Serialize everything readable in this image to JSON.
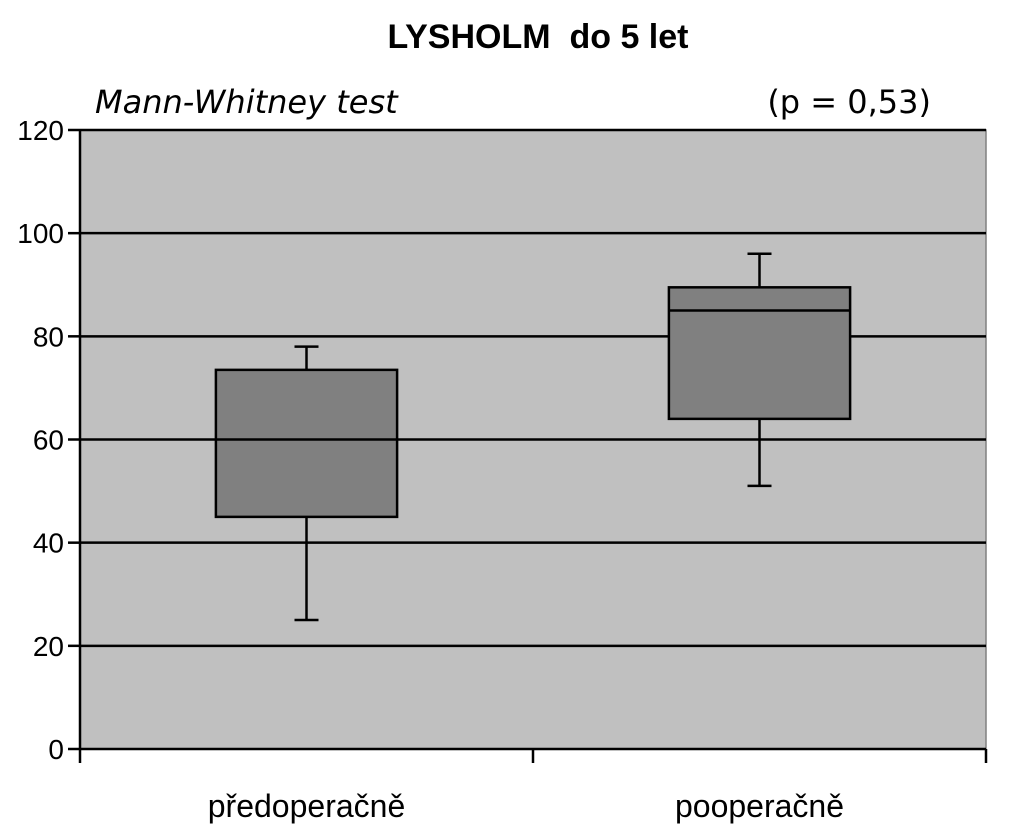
{
  "chart_data": {
    "type": "box",
    "title": "LYSHOLM  do 5 let",
    "subtitle": "Mann-Whitney test",
    "annotation": "(p = 0,53)",
    "ylim": [
      0,
      120
    ],
    "yticks": [
      "0",
      "20",
      "40",
      "60",
      "80",
      "100",
      "120"
    ],
    "ytick_values": [
      0,
      20,
      40,
      60,
      80,
      100,
      120
    ],
    "grid": true,
    "categories": [
      "předoperačně",
      "pooperačně"
    ],
    "boxes": [
      {
        "category": "předoperačně",
        "min": 25,
        "q1": 45,
        "median": 60,
        "q3": 73.5,
        "max": 78
      },
      {
        "category": "pooperačně",
        "min": 51,
        "q1": 64,
        "median": 85,
        "q3": 89.5,
        "max": 96
      }
    ],
    "colors": {
      "plot_background": "#c0c0c0",
      "box_fill": "#808080",
      "stroke": "#000000"
    }
  }
}
